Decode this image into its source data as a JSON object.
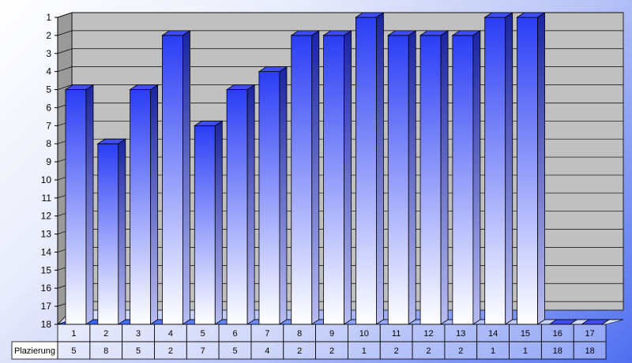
{
  "chart_data": {
    "type": "bar",
    "categories": [
      "1",
      "2",
      "3",
      "4",
      "5",
      "6",
      "7",
      "8",
      "9",
      "10",
      "11",
      "12",
      "13",
      "14",
      "15",
      "16",
      "17"
    ],
    "series": [
      {
        "name": "Plazierung",
        "values": [
          5,
          8,
          5,
          2,
          7,
          5,
          4,
          2,
          2,
          1,
          2,
          2,
          2,
          1,
          1,
          18,
          18
        ]
      }
    ],
    "ylim": [
      18,
      1
    ],
    "y_axis_reversed": true,
    "y_ticks": [
      "1",
      "2",
      "3",
      "4",
      "5",
      "6",
      "7",
      "8",
      "9",
      "10",
      "11",
      "12",
      "13",
      "14",
      "15",
      "16",
      "17",
      "18"
    ],
    "grid": true,
    "data_table": true,
    "colors": {
      "bar_top": "#2b3df5",
      "bar_bottom": "#ffffff",
      "floor": "#2d5bff",
      "wall": "#c0c0c0"
    }
  }
}
